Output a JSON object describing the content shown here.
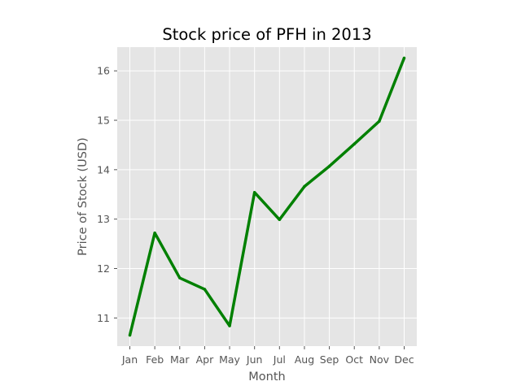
{
  "chart_data": {
    "type": "line",
    "title": "Stock price of PFH in 2013",
    "xlabel": "Month",
    "ylabel": "Price of Stock (USD)",
    "categories": [
      "Jan",
      "Feb",
      "Mar",
      "Apr",
      "May",
      "Jun",
      "Jul",
      "Aug",
      "Sep",
      "Oct",
      "Nov",
      "Dec"
    ],
    "series": [
      {
        "values": [
          10.65,
          12.72,
          11.81,
          11.58,
          10.84,
          13.54,
          12.99,
          13.66,
          14.07,
          14.52,
          14.98,
          16.26
        ]
      }
    ],
    "yticks": [
      11,
      12,
      13,
      14,
      15,
      16
    ],
    "ylim": [
      10.43,
      16.48
    ],
    "grid": true,
    "legend": "none",
    "colors": {
      "line": "#008000",
      "plot_background": "#e5e5e5",
      "grid": "#ffffff",
      "text": "#555555"
    }
  }
}
